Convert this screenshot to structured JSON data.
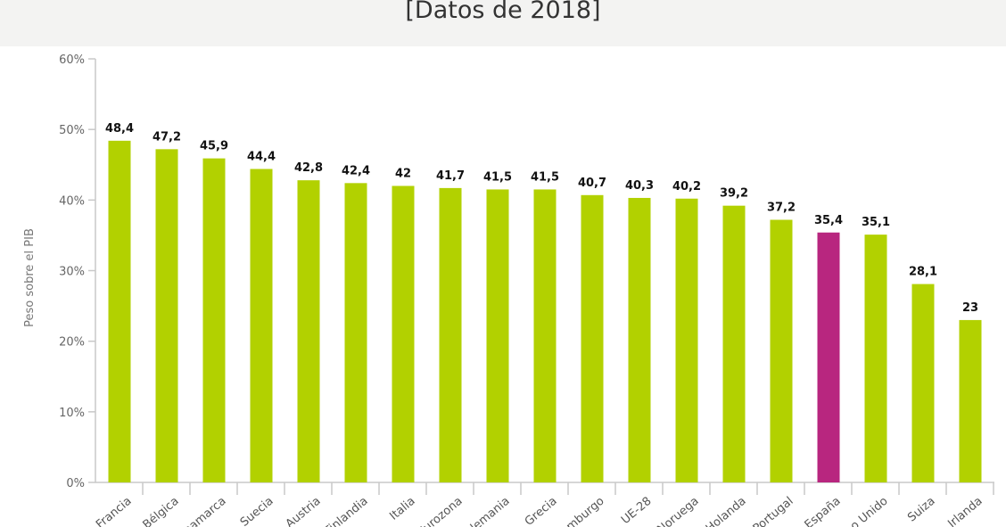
{
  "header": {
    "title": "[Datos de 2018]"
  },
  "chart_data": {
    "type": "bar",
    "title": "[Datos de 2018]",
    "ylabel": "Peso sobre el PIB",
    "xlabel": "",
    "ylim": [
      0,
      60
    ],
    "yticks": [
      "0%",
      "10%",
      "20%",
      "30%",
      "40%",
      "50%",
      "60%"
    ],
    "grid": false,
    "categories": [
      "Francia",
      "Bélgica",
      "Dinamarca",
      "Suecia",
      "Austria",
      "Finlandia",
      "Italia",
      "Eurozona",
      "Alemania",
      "Grecia",
      "Luxemburgo",
      "UE-28",
      "Noruega",
      "Holanda",
      "Portugal",
      "España",
      "Reino Unido",
      "Suiza",
      "Irlanda"
    ],
    "values": [
      48.4,
      47.2,
      45.9,
      44.4,
      42.8,
      42.4,
      42,
      41.7,
      41.5,
      41.5,
      40.7,
      40.3,
      40.2,
      39.2,
      37.2,
      35.4,
      35.1,
      28.1,
      23
    ],
    "data_labels": [
      "48,4",
      "47,2",
      "45,9",
      "44,4",
      "42,8",
      "42,4",
      "42",
      "41,7",
      "41,5",
      "41,5",
      "40,7",
      "40,3",
      "40,2",
      "39,2",
      "37,2",
      "35,4",
      "35,1",
      "28,1",
      "23"
    ],
    "colors": {
      "default": "#b2d100",
      "highlight": "#b8267f",
      "highlight_category": "España",
      "axis": "#c8c8c8"
    }
  }
}
